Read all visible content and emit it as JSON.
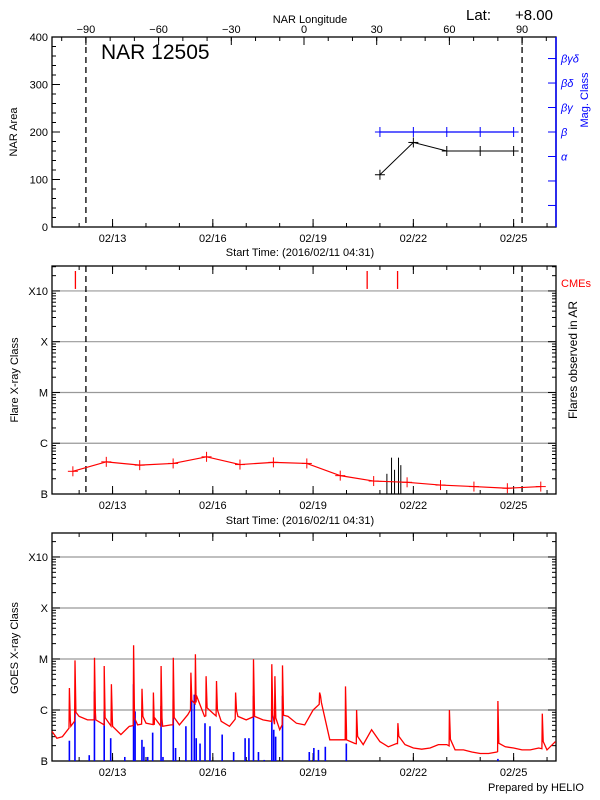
{
  "colors": {
    "axis": "#000000",
    "grid": "#999999",
    "mag": "#0000ff",
    "flare_line": "#ff0000",
    "cme": "#ff0000",
    "goes_long": "#ff0000",
    "goes_short": "#0000ff"
  },
  "footer": "Prepared by HELIO",
  "chart_data": [
    {
      "type": "line",
      "title": "NAR 12505",
      "lat_label": "Lat:",
      "lat_value": "+8.00",
      "top_axis": {
        "label": "NAR Longitude",
        "ticks": [
          -90,
          -60,
          -30,
          0,
          30,
          60,
          90
        ],
        "xlim": [
          -104,
          104
        ]
      },
      "xlabel": "Start Time: (2016/02/11 04:31)",
      "xlim": [
        "2016-02-11T04:31",
        "2016-02-26T06:26"
      ],
      "xticks": [
        {
          "label": "02/13",
          "date": "2016-02-13"
        },
        {
          "label": "02/16",
          "date": "2016-02-16"
        },
        {
          "label": "02/19",
          "date": "2016-02-19"
        },
        {
          "label": "02/22",
          "date": "2016-02-22"
        },
        {
          "label": "02/25",
          "date": "2016-02-25"
        }
      ],
      "ylabel": "NAR Area",
      "ylim": [
        0,
        400
      ],
      "yticks": [
        0,
        100,
        200,
        300,
        400
      ],
      "limb_longitudes": [
        -90,
        90
      ],
      "area_series": {
        "x": [
          "2016-02-21T00:00",
          "2016-02-22T00:00",
          "2016-02-23T00:00",
          "2016-02-24T00:00",
          "2016-02-25T00:00"
        ],
        "y": [
          110,
          178,
          160,
          160,
          160
        ]
      },
      "right_axis": {
        "label": "Mag. Class",
        "categories": [
          "",
          "",
          "α",
          "β",
          "βγ",
          "βδ",
          "βγδ"
        ],
        "ylim": [
          -0.88,
          6.88
        ]
      },
      "mag_series": {
        "x": [
          "2016-02-21T00:00",
          "2016-02-22T00:00",
          "2016-02-23T00:00",
          "2016-02-24T00:00",
          "2016-02-25T00:00"
        ],
        "y": [
          "β",
          "β",
          "β",
          "β",
          "β"
        ]
      }
    },
    {
      "type": "line",
      "xlabel": "Start Time: (2016/02/11 04:31)",
      "xlim": [
        "2016-02-11T04:31",
        "2016-02-26T06:26"
      ],
      "xticks": [
        {
          "label": "02/13",
          "date": "2016-02-13"
        },
        {
          "label": "02/16",
          "date": "2016-02-16"
        },
        {
          "label": "02/19",
          "date": "2016-02-19"
        },
        {
          "label": "02/22",
          "date": "2016-02-22"
        },
        {
          "label": "02/25",
          "date": "2016-02-25"
        }
      ],
      "ylabel": "Flare X-ray Class",
      "right_label": "Flares observed in AR",
      "yscale": "log",
      "ylim": [
        1e-07,
        0.0031
      ],
      "yticks": [
        {
          "label": "B",
          "value": 1e-07
        },
        {
          "label": "C",
          "value": 1e-06
        },
        {
          "label": "M",
          "value": 1e-05
        },
        {
          "label": "X",
          "value": 0.0001
        },
        {
          "label": "X10",
          "value": 0.001
        }
      ],
      "grid": true,
      "limb_longitudes": [
        -90,
        90
      ],
      "background_series": {
        "x": [
          "2016-02-11T19:30",
          "2016-02-12T19:30",
          "2016-02-13T19:30",
          "2016-02-14T19:30",
          "2016-02-15T19:30",
          "2016-02-16T19:30",
          "2016-02-17T19:30",
          "2016-02-18T19:30",
          "2016-02-19T19:30",
          "2016-02-20T19:30",
          "2016-02-21T19:30",
          "2016-02-22T19:30",
          "2016-02-23T19:30",
          "2016-02-24T19:30",
          "2016-02-25T19:30"
        ],
        "y": [
          2.8e-07,
          4.3e-07,
          3.7e-07,
          4e-07,
          5.4e-07,
          3.8e-07,
          4.2e-07,
          4e-07,
          2.3e-07,
          1.8e-07,
          1.7e-07,
          1.5e-07,
          1.4e-07,
          1.3e-07,
          1.4e-07
        ]
      },
      "flares": [
        [
          "2016-02-21T05:00",
          2.5e-07
        ],
        [
          "2016-02-21T08:20",
          5.2e-07
        ],
        [
          "2016-02-21T10:30",
          3e-07
        ],
        [
          "2016-02-21T13:20",
          5.2e-07
        ],
        [
          "2016-02-21T15:00",
          3.7e-07
        ]
      ],
      "cme_label": "CMEs",
      "cmes": [
        "2016-02-11T21:20",
        "2016-02-20T14:50",
        "2016-02-21T12:40"
      ]
    },
    {
      "type": "line",
      "xlim": [
        "2016-02-11T04:31",
        "2016-02-26T06:26"
      ],
      "xticks": [
        {
          "label": "02/13",
          "date": "2016-02-13"
        },
        {
          "label": "02/16",
          "date": "2016-02-16"
        },
        {
          "label": "02/19",
          "date": "2016-02-19"
        },
        {
          "label": "02/22",
          "date": "2016-02-22"
        },
        {
          "label": "02/25",
          "date": "2016-02-25"
        }
      ],
      "ylabel": "GOES X-ray Class",
      "yscale": "log",
      "ylim": [
        1e-07,
        0.00295
      ],
      "yticks": [
        {
          "label": "B",
          "value": 1e-07
        },
        {
          "label": "C",
          "value": 1e-06
        },
        {
          "label": "M",
          "value": 1e-05
        },
        {
          "label": "X",
          "value": 0.0001
        },
        {
          "label": "X10",
          "value": 0.001
        }
      ],
      "grid": true,
      "long_channel_background": [
        [
          "2016-02-11T04:31",
          3.8e-07
        ],
        [
          "2016-02-11T08:00",
          2.8e-07
        ],
        [
          "2016-02-11T12:00",
          3e-07
        ],
        [
          "2016-02-11T18:00",
          4.8e-07
        ],
        [
          "2016-02-12T00:00",
          7.5e-07
        ],
        [
          "2016-02-12T06:00",
          6.4e-07
        ],
        [
          "2016-02-12T12:00",
          6.4e-07
        ],
        [
          "2016-02-12T18:00",
          5.1e-07
        ],
        [
          "2016-02-13T00:00",
          4.8e-07
        ],
        [
          "2016-02-13T06:00",
          3.3e-07
        ],
        [
          "2016-02-13T12:00",
          4.8e-07
        ],
        [
          "2016-02-13T18:00",
          5.1e-07
        ],
        [
          "2016-02-14T00:00",
          5.5e-07
        ],
        [
          "2016-02-14T06:00",
          5.1e-07
        ],
        [
          "2016-02-14T12:00",
          4.8e-07
        ],
        [
          "2016-02-14T18:00",
          5.1e-07
        ],
        [
          "2016-02-15T00:00",
          5.1e-07
        ],
        [
          "2016-02-15T06:00",
          8.1e-07
        ],
        [
          "2016-02-15T12:00",
          1.4e-06
        ],
        [
          "2016-02-15T18:00",
          7.5e-07
        ],
        [
          "2016-02-16T00:00",
          8.7e-07
        ],
        [
          "2016-02-16T06:00",
          6e-07
        ],
        [
          "2016-02-16T12:00",
          4.8e-07
        ],
        [
          "2016-02-16T18:00",
          7.5e-07
        ],
        [
          "2016-02-17T00:00",
          6.4e-07
        ],
        [
          "2016-02-17T06:00",
          7.5e-07
        ],
        [
          "2016-02-17T12:00",
          6.4e-07
        ],
        [
          "2016-02-17T18:00",
          6e-07
        ],
        [
          "2016-02-18T00:00",
          4.1e-07
        ],
        [
          "2016-02-18T06:00",
          7.5e-07
        ],
        [
          "2016-02-18T12:00",
          5.5e-07
        ],
        [
          "2016-02-18T18:00",
          5.1e-07
        ],
        [
          "2016-02-19T00:00",
          1e-06
        ],
        [
          "2016-02-19T06:00",
          1.4e-06
        ],
        [
          "2016-02-19T12:00",
          2.6e-07
        ],
        [
          "2016-02-19T18:00",
          2.6e-07
        ],
        [
          "2016-02-20T00:00",
          2.6e-07
        ],
        [
          "2016-02-20T06:00",
          2.2e-07
        ],
        [
          "2016-02-20T12:00",
          2.1e-07
        ],
        [
          "2016-02-20T18:00",
          4.1e-07
        ],
        [
          "2016-02-21T00:00",
          2.4e-07
        ],
        [
          "2016-02-21T06:00",
          1.9e-07
        ],
        [
          "2016-02-21T12:00",
          2.2e-07
        ],
        [
          "2016-02-21T18:00",
          2.1e-07
        ],
        [
          "2016-02-22T00:00",
          1.8e-07
        ],
        [
          "2016-02-22T06:00",
          1.7e-07
        ],
        [
          "2016-02-22T12:00",
          1.8e-07
        ],
        [
          "2016-02-22T18:00",
          2.1e-07
        ],
        [
          "2016-02-23T00:00",
          2.1e-07
        ],
        [
          "2016-02-23T06:00",
          1.65e-07
        ],
        [
          "2016-02-23T12:00",
          1.65e-07
        ],
        [
          "2016-02-23T18:00",
          1.5e-07
        ],
        [
          "2016-02-24T00:00",
          1.4e-07
        ],
        [
          "2016-02-24T06:00",
          1.4e-07
        ],
        [
          "2016-02-24T12:00",
          1.5e-07
        ],
        [
          "2016-02-24T18:00",
          1.9e-07
        ],
        [
          "2016-02-25T00:00",
          1.8e-07
        ],
        [
          "2016-02-25T06:00",
          1.65e-07
        ],
        [
          "2016-02-25T12:00",
          1.65e-07
        ],
        [
          "2016-02-25T18:00",
          1.8e-07
        ],
        [
          "2016-02-26T00:00",
          1.65e-07
        ],
        [
          "2016-02-26T06:00",
          2.4e-07
        ]
      ],
      "long_channel_peaks": [
        [
          "2016-02-11T17:00",
          2.7e-06
        ],
        [
          "2016-02-11T21:00",
          9.4e-06
        ],
        [
          "2016-02-12T11:00",
          1.06e-05
        ],
        [
          "2016-02-12T18:00",
          7.3e-06
        ],
        [
          "2016-02-12T23:10",
          3.2e-06
        ],
        [
          "2016-02-13T15:05",
          1.86e-05
        ],
        [
          "2016-02-13T21:07",
          2.6e-06
        ],
        [
          "2016-02-14T05:21",
          2.2e-06
        ],
        [
          "2016-02-14T10:50",
          7.3e-06
        ],
        [
          "2016-02-14T19:36",
          1.06e-05
        ],
        [
          "2016-02-15T08:14",
          5.4e-06
        ],
        [
          "2016-02-15T11:31",
          1.24e-05
        ],
        [
          "2016-02-15T19:12",
          4.6e-06
        ],
        [
          "2016-02-16T02:37",
          3.7e-06
        ],
        [
          "2016-02-16T16:20",
          2.2e-06
        ],
        [
          "2016-02-17T05:12",
          9.9e-06
        ],
        [
          "2016-02-17T18:23",
          7.9e-06
        ],
        [
          "2016-02-17T20:34",
          4.6e-06
        ],
        [
          "2016-02-18T02:04",
          7.5e-06
        ],
        [
          "2016-02-19T04:39",
          2.2e-06
        ],
        [
          "2016-02-19T23:18",
          2.9e-06
        ],
        [
          "2016-02-20T07:16",
          1e-06
        ],
        [
          "2016-02-21T12:53",
          5.5e-07
        ],
        [
          "2016-02-23T01:55",
          1e-06
        ],
        [
          "2016-02-24T12:43",
          1.5e-06
        ],
        [
          "2016-02-25T20:34",
          8.5e-07
        ]
      ],
      "short_channel": [
        [
          "2016-02-11T17:00",
          2.5e-07
        ],
        [
          "2016-02-11T21:00",
          9.4e-07
        ],
        [
          "2016-02-12T07:15",
          1.3e-07
        ],
        [
          "2016-02-12T11:00",
          2.3e-06
        ],
        [
          "2016-02-12T18:00",
          9.4e-07
        ],
        [
          "2016-02-12T22:40",
          2.8e-07
        ],
        [
          "2016-02-13T08:47",
          1.2e-07
        ],
        [
          "2016-02-13T15:05",
          3.2e-06
        ],
        [
          "2016-02-13T16:11",
          9.4e-07
        ],
        [
          "2016-02-13T21:07",
          2.6e-07
        ],
        [
          "2016-02-13T22:30",
          1.9e-07
        ],
        [
          "2016-02-14T01:14",
          1.2e-07
        ],
        [
          "2016-02-14T04:48",
          3.6e-07
        ],
        [
          "2016-02-14T10:50",
          1.2e-06
        ],
        [
          "2016-02-14T12:12",
          1.2e-07
        ],
        [
          "2016-02-14T19:36",
          1.6e-06
        ],
        [
          "2016-02-14T21:15",
          1.8e-07
        ],
        [
          "2016-02-15T04:40",
          4.8e-07
        ],
        [
          "2016-02-15T08:47",
          1.6e-06
        ],
        [
          "2016-02-15T10:42",
          2e-06
        ],
        [
          "2016-02-15T12:05",
          2.8e-07
        ],
        [
          "2016-02-15T14:49",
          2.2e-07
        ],
        [
          "2016-02-15T18:23",
          5.5e-07
        ],
        [
          "2016-02-15T21:57",
          4.8e-07
        ],
        [
          "2016-02-16T06:43",
          3.3e-07
        ],
        [
          "2016-02-16T14:57",
          1.5e-07
        ],
        [
          "2016-02-16T23:11",
          2.8e-07
        ],
        [
          "2016-02-17T01:55",
          2.8e-07
        ],
        [
          "2016-02-17T05:12",
          1.9e-06
        ],
        [
          "2016-02-17T08:46",
          1.5e-07
        ],
        [
          "2016-02-17T12:53",
          1.05e-07
        ],
        [
          "2016-02-17T18:23",
          1.4e-06
        ],
        [
          "2016-02-17T19:45",
          4.1e-07
        ],
        [
          "2016-02-17T21:07",
          3e-07
        ],
        [
          "2016-02-18T02:04",
          1.9e-06
        ],
        [
          "2016-02-18T21:16",
          1.5e-07
        ],
        [
          "2016-02-19T00:33",
          1.8e-07
        ],
        [
          "2016-02-19T03:51",
          1.65e-07
        ],
        [
          "2016-02-19T08:47",
          1.9e-07
        ],
        [
          "2016-02-19T23:52",
          2.2e-07
        ],
        [
          "2016-02-24T12:43",
          1.1e-07
        ]
      ]
    }
  ]
}
